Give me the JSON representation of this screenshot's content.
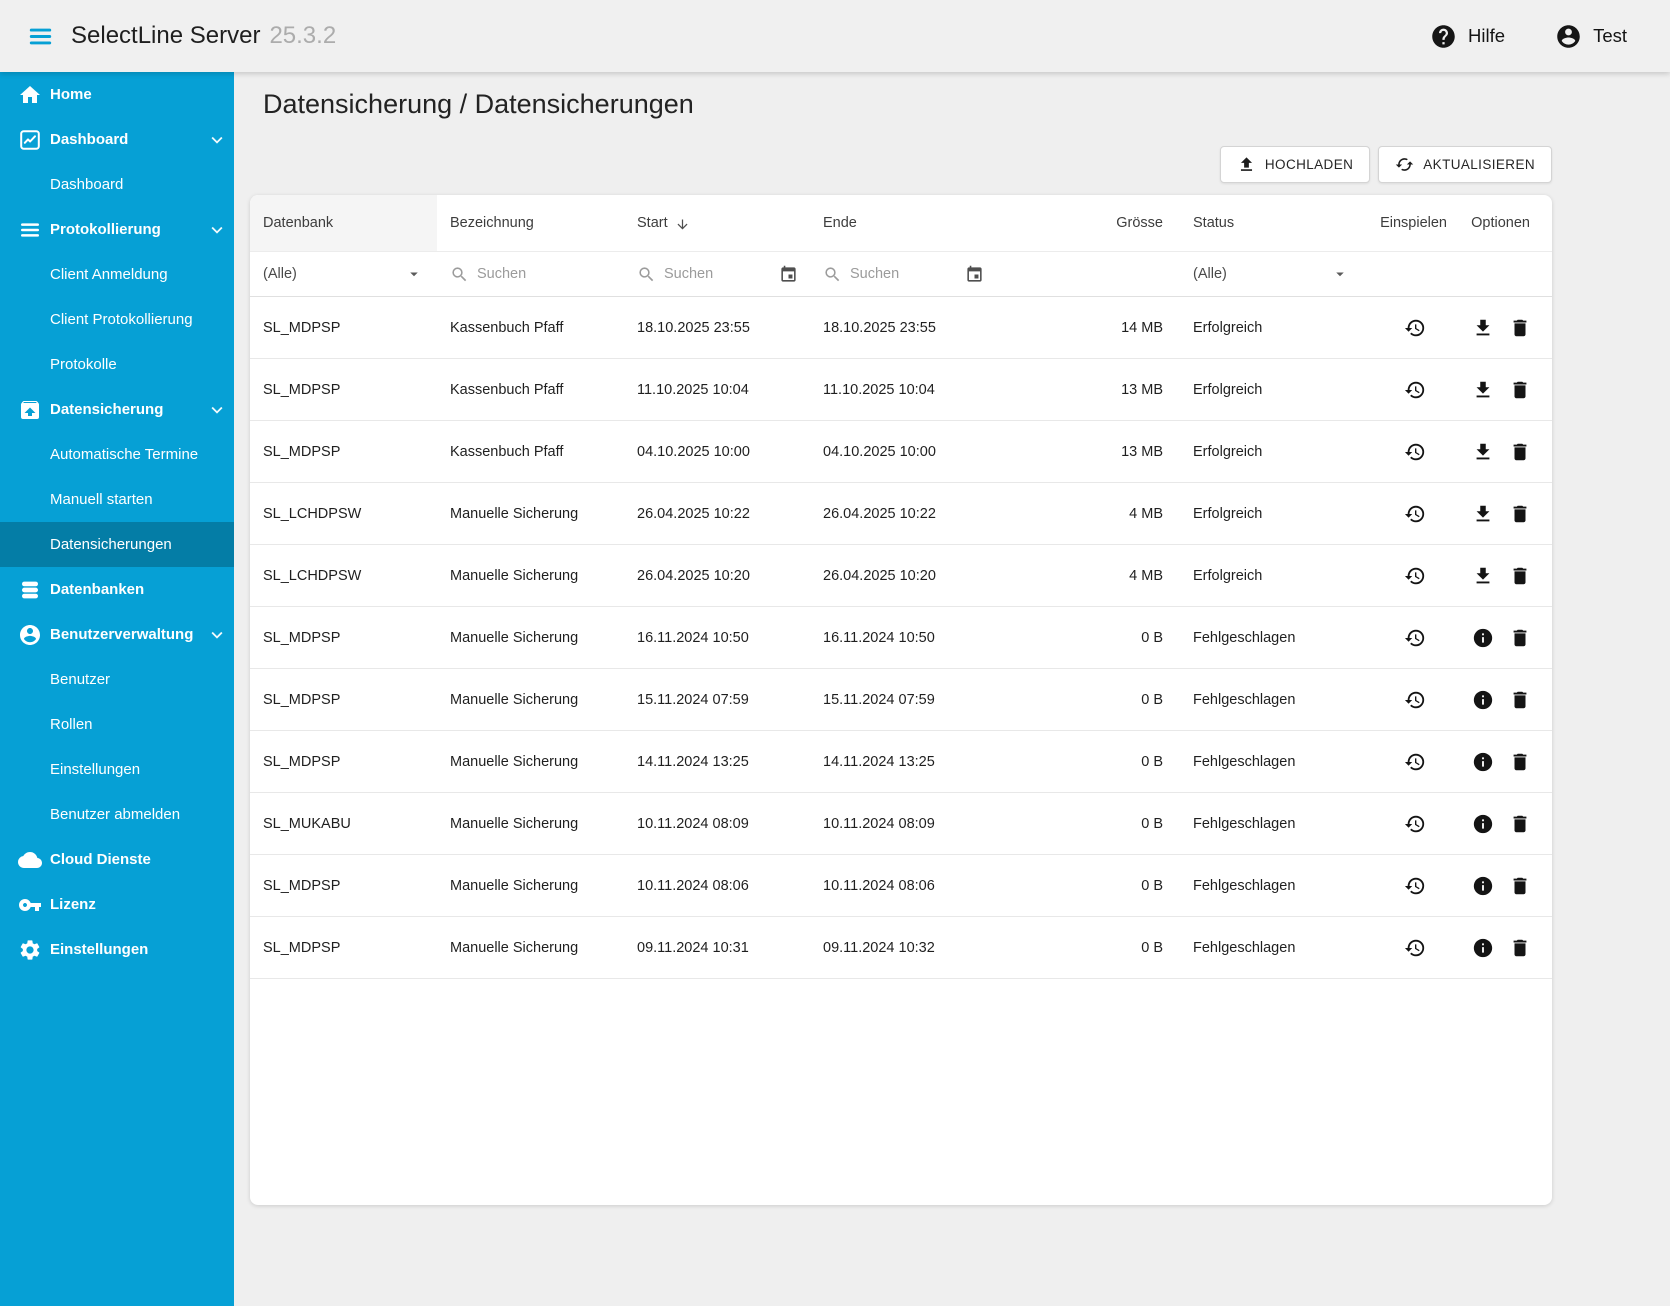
{
  "topbar": {
    "title": "SelectLine Server",
    "version": "25.3.2",
    "help_label": "Hilfe",
    "user_label": "Test"
  },
  "icons": {
    "topbar": [
      "menu-icon",
      "help-icon",
      "account-icon"
    ],
    "buttons": [
      "upload-icon",
      "refresh-icon"
    ],
    "table": [
      "sort-desc-icon",
      "search-icon",
      "calendar-icon",
      "caret-down-icon"
    ],
    "row_actions": [
      "restore-icon",
      "download-icon",
      "info-icon",
      "delete-icon"
    ]
  },
  "sidebar": {
    "items": [
      {
        "label": "Home",
        "icon": "home",
        "type": "parent"
      },
      {
        "label": "Dashboard",
        "icon": "chart",
        "type": "parent",
        "chevron": true
      },
      {
        "label": "Dashboard",
        "type": "sub"
      },
      {
        "label": "Protokollierung",
        "icon": "list",
        "type": "parent",
        "chevron": true
      },
      {
        "label": "Client Anmeldung",
        "type": "sub"
      },
      {
        "label": "Client Protokollierung",
        "type": "sub"
      },
      {
        "label": "Protokolle",
        "type": "sub"
      },
      {
        "label": "Datensicherung",
        "icon": "backup",
        "type": "parent",
        "chevron": true
      },
      {
        "label": "Automatische Termine",
        "type": "sub"
      },
      {
        "label": "Manuell starten",
        "type": "sub"
      },
      {
        "label": "Datensicherungen",
        "type": "sub",
        "active": true
      },
      {
        "label": "Datenbanken",
        "icon": "database",
        "type": "parent"
      },
      {
        "label": "Benutzerverwaltung",
        "icon": "user-circle",
        "type": "parent",
        "chevron": true
      },
      {
        "label": "Benutzer",
        "type": "sub"
      },
      {
        "label": "Rollen",
        "type": "sub"
      },
      {
        "label": "Einstellungen",
        "type": "sub"
      },
      {
        "label": "Benutzer abmelden",
        "type": "sub"
      },
      {
        "label": "Cloud Dienste",
        "icon": "cloud",
        "type": "parent"
      },
      {
        "label": "Lizenz",
        "icon": "key",
        "type": "parent"
      },
      {
        "label": "Einstellungen",
        "icon": "gear",
        "type": "parent"
      }
    ]
  },
  "main": {
    "page_title": "Datensicherung / Datensicherungen",
    "upload_button": "HOCHLADEN",
    "refresh_button": "AKTUALISIEREN"
  },
  "table": {
    "headers": {
      "datenbank": "Datenbank",
      "bezeichnung": "Bezeichnung",
      "start": "Start",
      "ende": "Ende",
      "groesse": "Grösse",
      "status": "Status",
      "einspielen": "Einspielen",
      "optionen": "Optionen"
    },
    "sort": {
      "column": "Start",
      "direction": "desc"
    },
    "filters": {
      "datenbank_selected": "(Alle)",
      "bezeichnung_placeholder": "Suchen",
      "start_placeholder": "Suchen",
      "ende_placeholder": "Suchen",
      "status_selected": "(Alle)"
    },
    "rows": [
      {
        "datenbank": "SL_MDPSP",
        "bezeichnung": "Kassenbuch Pfaff",
        "start": "18.10.2025 23:55",
        "ende": "18.10.2025 23:55",
        "groesse": "14 MB",
        "status": "Erfolgreich",
        "einspielen_icon": "restore",
        "option_icons": [
          "download",
          "delete"
        ]
      },
      {
        "datenbank": "SL_MDPSP",
        "bezeichnung": "Kassenbuch Pfaff",
        "start": "11.10.2025 10:04",
        "ende": "11.10.2025 10:04",
        "groesse": "13 MB",
        "status": "Erfolgreich",
        "einspielen_icon": "restore",
        "option_icons": [
          "download",
          "delete"
        ]
      },
      {
        "datenbank": "SL_MDPSP",
        "bezeichnung": "Kassenbuch Pfaff",
        "start": "04.10.2025 10:00",
        "ende": "04.10.2025 10:00",
        "groesse": "13 MB",
        "status": "Erfolgreich",
        "einspielen_icon": "restore",
        "option_icons": [
          "download",
          "delete"
        ]
      },
      {
        "datenbank": "SL_LCHDPSW",
        "bezeichnung": "Manuelle Sicherung",
        "start": "26.04.2025 10:22",
        "ende": "26.04.2025 10:22",
        "groesse": "4 MB",
        "status": "Erfolgreich",
        "einspielen_icon": "restore",
        "option_icons": [
          "download",
          "delete"
        ]
      },
      {
        "datenbank": "SL_LCHDPSW",
        "bezeichnung": "Manuelle Sicherung",
        "start": "26.04.2025 10:20",
        "ende": "26.04.2025 10:20",
        "groesse": "4 MB",
        "status": "Erfolgreich",
        "einspielen_icon": "restore",
        "option_icons": [
          "download",
          "delete"
        ]
      },
      {
        "datenbank": "SL_MDPSP",
        "bezeichnung": "Manuelle Sicherung",
        "start": "16.11.2024 10:50",
        "ende": "16.11.2024 10:50",
        "groesse": "0 B",
        "status": "Fehlgeschlagen",
        "einspielen_icon": "restore",
        "option_icons": [
          "info",
          "delete"
        ]
      },
      {
        "datenbank": "SL_MDPSP",
        "bezeichnung": "Manuelle Sicherung",
        "start": "15.11.2024 07:59",
        "ende": "15.11.2024 07:59",
        "groesse": "0 B",
        "status": "Fehlgeschlagen",
        "einspielen_icon": "restore",
        "option_icons": [
          "info",
          "delete"
        ]
      },
      {
        "datenbank": "SL_MDPSP",
        "bezeichnung": "Manuelle Sicherung",
        "start": "14.11.2024 13:25",
        "ende": "14.11.2024 13:25",
        "groesse": "0 B",
        "status": "Fehlgeschlagen",
        "einspielen_icon": "restore",
        "option_icons": [
          "info",
          "delete"
        ]
      },
      {
        "datenbank": "SL_MUKABU",
        "bezeichnung": "Manuelle Sicherung",
        "start": "10.11.2024 08:09",
        "ende": "10.11.2024 08:09",
        "groesse": "0 B",
        "status": "Fehlgeschlagen",
        "einspielen_icon": "restore",
        "option_icons": [
          "info",
          "delete"
        ]
      },
      {
        "datenbank": "SL_MDPSP",
        "bezeichnung": "Manuelle Sicherung",
        "start": "10.11.2024 08:06",
        "ende": "10.11.2024 08:06",
        "groesse": "0 B",
        "status": "Fehlgeschlagen",
        "einspielen_icon": "restore",
        "option_icons": [
          "info",
          "delete"
        ]
      },
      {
        "datenbank": "SL_MDPSP",
        "bezeichnung": "Manuelle Sicherung",
        "start": "09.11.2024 10:31",
        "ende": "09.11.2024 10:32",
        "groesse": "0 B",
        "status": "Fehlgeschlagen",
        "einspielen_icon": "restore",
        "option_icons": [
          "info",
          "delete"
        ]
      }
    ]
  },
  "colors": {
    "sidebar": "#06a0d5",
    "sidebar_active_overlay": "#0580aa",
    "topbar_bg": "#f0f0f0",
    "page_bg": "#efefef",
    "card_bg": "#ffffff",
    "accent": "#06a0d5",
    "icon_black": "#141414"
  }
}
